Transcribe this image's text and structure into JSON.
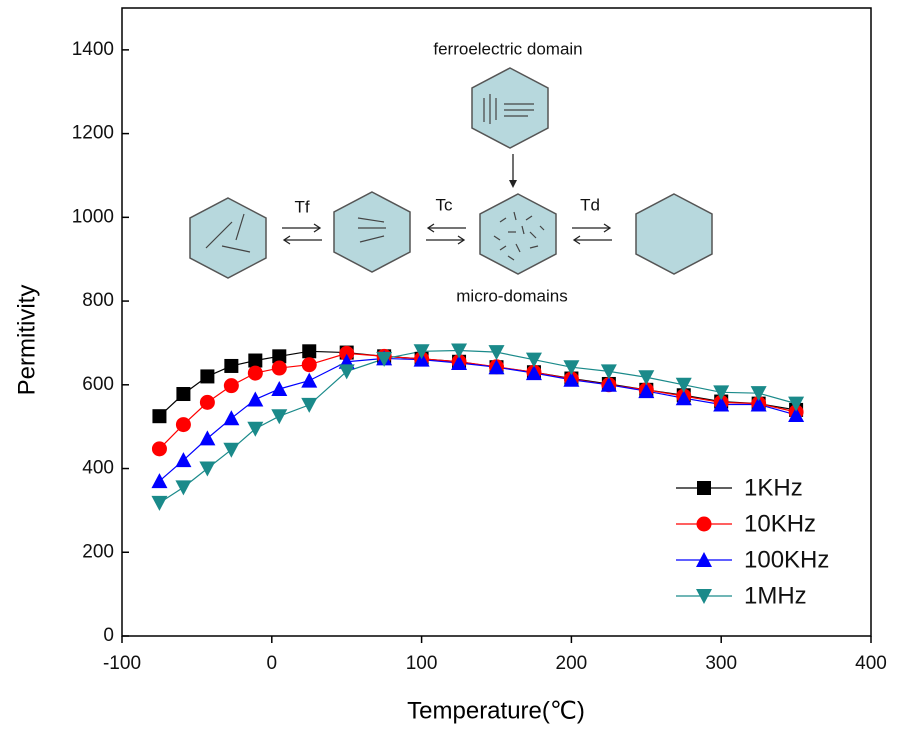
{
  "chart_data": {
    "type": "line",
    "xlabel": "Temperature(℃)",
    "ylabel": "Permitivity",
    "annotations": [
      "ferroelectric domain",
      "Tf",
      "Tc",
      "Td",
      "micro-domains"
    ],
    "x": [
      -75,
      -59,
      -43,
      -27,
      -11,
      5,
      25,
      50,
      75,
      100,
      125,
      150,
      175,
      200,
      225,
      250,
      275,
      300,
      325,
      350
    ],
    "series": [
      {
        "name": "1KHz",
        "color": "#000000",
        "marker": "square",
        "values": [
          525,
          578,
          620,
          645,
          658,
          668,
          680,
          677,
          668,
          662,
          655,
          642,
          630,
          615,
          602,
          588,
          575,
          560,
          555,
          540
        ]
      },
      {
        "name": "10KHz",
        "color": "#ff0000",
        "marker": "circle",
        "values": [
          447,
          505,
          558,
          598,
          628,
          640,
          648,
          675,
          668,
          662,
          655,
          643,
          630,
          614,
          600,
          588,
          573,
          558,
          555,
          535
        ]
      },
      {
        "name": "100KHz",
        "color": "#0000ff",
        "marker": "triangle-up",
        "values": [
          370,
          420,
          472,
          520,
          565,
          590,
          610,
          655,
          663,
          660,
          652,
          642,
          628,
          612,
          600,
          585,
          568,
          553,
          553,
          528
        ]
      },
      {
        "name": "1MHz",
        "color": "#1a8a8a",
        "marker": "triangle-down",
        "values": [
          318,
          355,
          400,
          445,
          495,
          525,
          552,
          632,
          662,
          680,
          682,
          678,
          660,
          642,
          632,
          618,
          600,
          582,
          580,
          555
        ]
      }
    ],
    "xlim": [
      -100,
      400
    ],
    "xticks": [
      -100,
      0,
      100,
      200,
      300,
      400
    ],
    "ylim": [
      0,
      1500
    ],
    "yticks": [
      0,
      200,
      400,
      600,
      800,
      1000,
      1200,
      1400
    ],
    "grid": false,
    "legend": "lower right"
  }
}
